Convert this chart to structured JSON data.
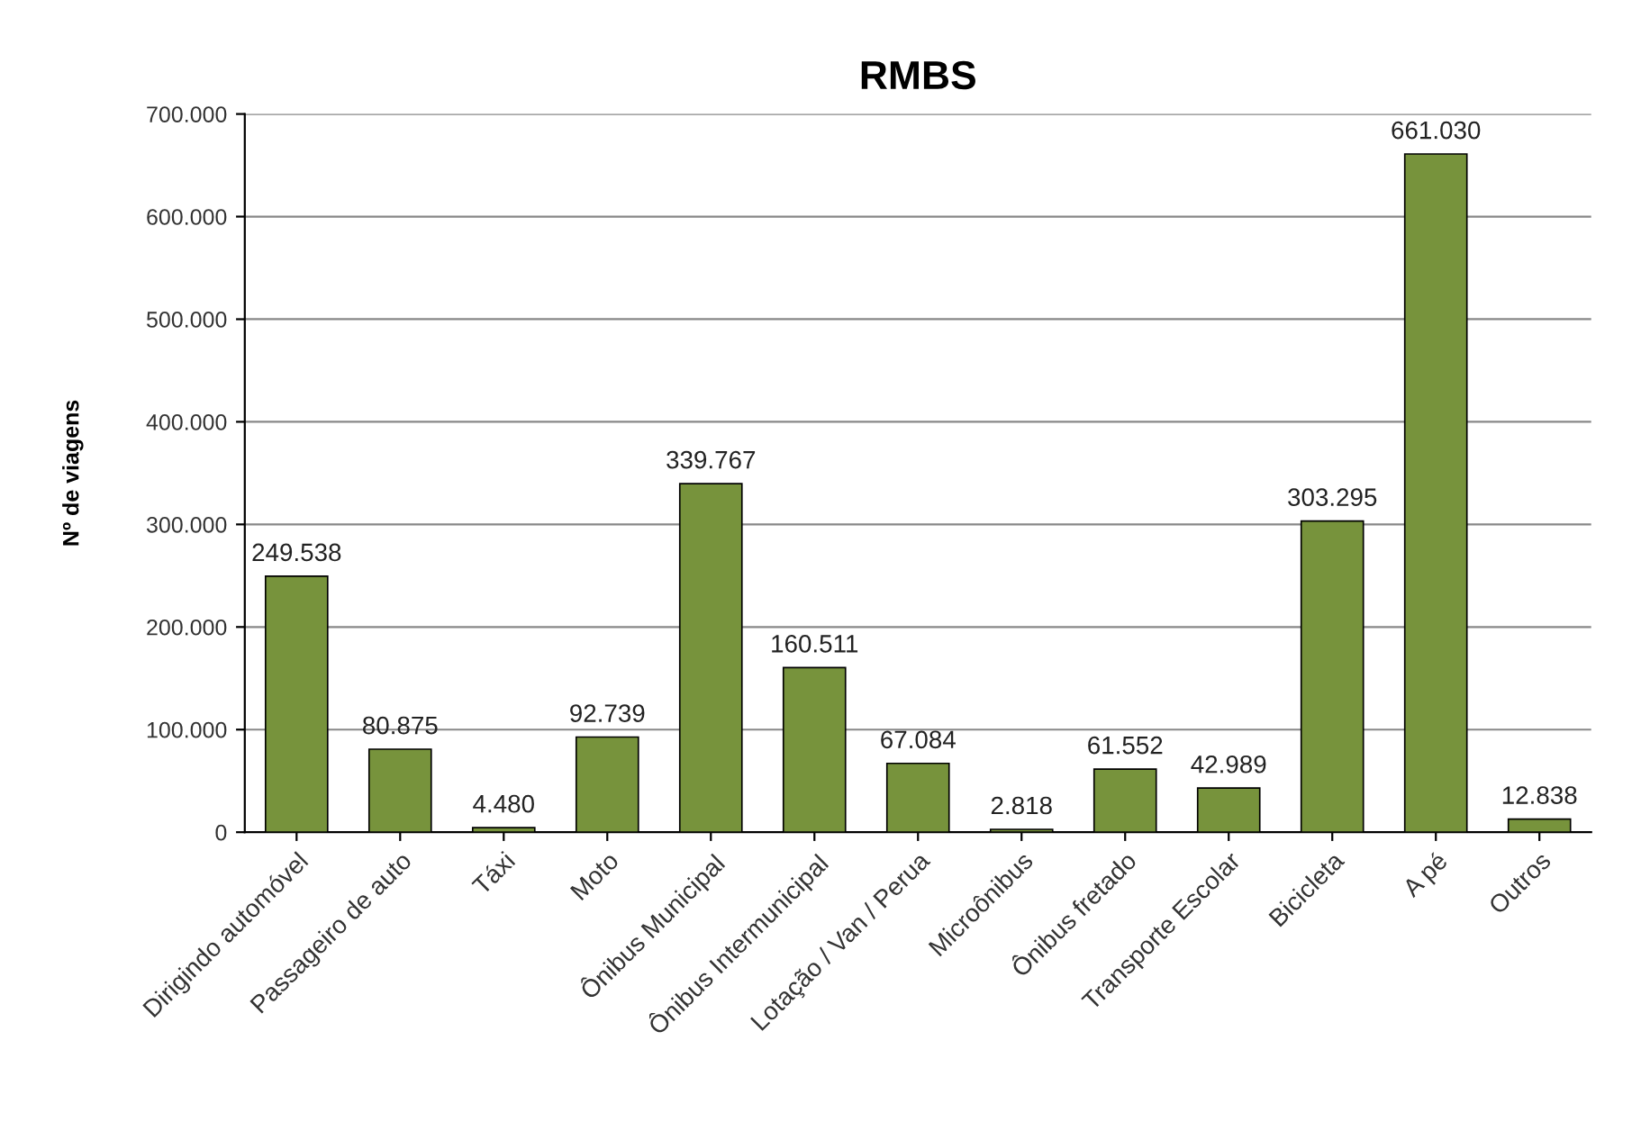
{
  "chart_data": {
    "type": "bar",
    "title": "RMBS",
    "ylabel": "Nº de viagens",
    "categories": [
      "Dirigindo automóvel",
      "Passageiro de auto",
      "Táxi",
      "Moto",
      "Ônibus Municipal",
      "Ônibus Intermunicipal",
      "Lotação / Van / Perua",
      "Microônibus",
      "Ônibus fretado",
      "Transporte Escolar",
      "Bicicleta",
      "A pé",
      "Outros"
    ],
    "values": [
      249538,
      80875,
      4480,
      92739,
      339767,
      160511,
      67084,
      2818,
      61552,
      42989,
      303295,
      661030,
      12838
    ],
    "value_labels": [
      "249.538",
      "80.875",
      "4.480",
      "92.739",
      "339.767",
      "160.511",
      "67.084",
      "2.818",
      "61.552",
      "42.989",
      "303.295",
      "661.030",
      "12.838"
    ],
    "color": "#77933c",
    "ylim": [
      0,
      700000
    ],
    "yticks": [
      {
        "value": 0,
        "label": "0"
      },
      {
        "value": 100000,
        "label": "100.000"
      },
      {
        "value": 200000,
        "label": "200.000"
      },
      {
        "value": 300000,
        "label": "300.000"
      },
      {
        "value": 400000,
        "label": "400.000"
      },
      {
        "value": 500000,
        "label": "500.000"
      },
      {
        "value": 600000,
        "label": "600.000"
      },
      {
        "value": 700000,
        "label": "700.000"
      }
    ],
    "grid": "y",
    "legend": false
  }
}
